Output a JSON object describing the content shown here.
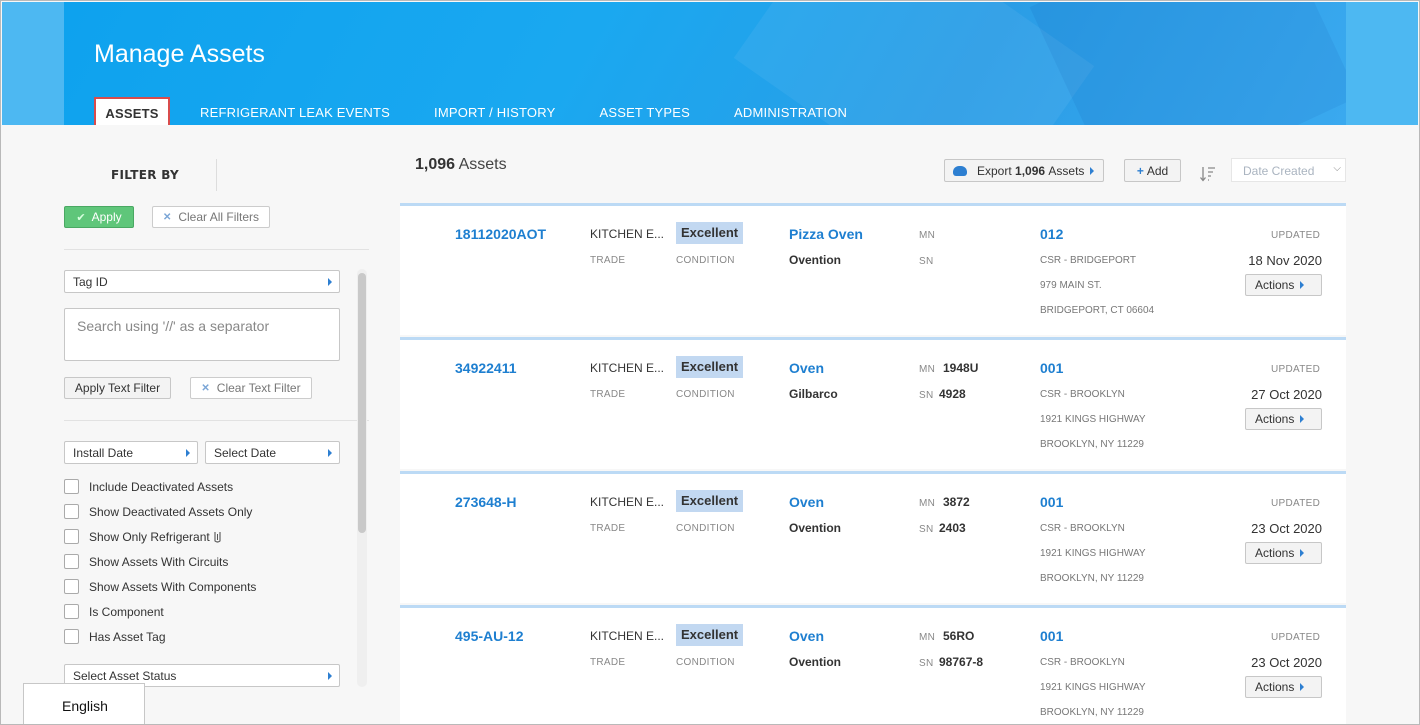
{
  "header": {
    "title": "Manage Assets",
    "tabs": [
      {
        "label": "ASSETS",
        "active": true
      },
      {
        "label": "REFRIGERANT LEAK EVENTS"
      },
      {
        "label": "IMPORT / HISTORY"
      },
      {
        "label": "ASSET TYPES"
      },
      {
        "label": "ADMINISTRATION"
      }
    ]
  },
  "sidebar": {
    "filter_by": "FILTER BY",
    "apply_label": "Apply",
    "clear_all_label": "Clear All Filters",
    "tag_select": "Tag ID",
    "search_placeholder": "Search using '//' as a separator",
    "apply_text_filter": "Apply Text Filter",
    "clear_text_filter": "Clear Text Filter",
    "install_date": "Install Date",
    "select_date": "Select Date",
    "checkboxes": [
      {
        "label": "Include Deactivated Assets",
        "checked": false
      },
      {
        "label": "Show Deactivated Assets Only",
        "checked": false
      },
      {
        "label": "Show Only Refrigerant",
        "checked": false
      },
      {
        "label": "Show Assets With Circuits",
        "checked": false
      },
      {
        "label": "Show Assets With Components",
        "checked": false
      },
      {
        "label": "Is Component",
        "checked": false
      },
      {
        "label": "Has Asset Tag",
        "checked": false
      }
    ],
    "asset_status": "Select Asset Status"
  },
  "language": "English",
  "main": {
    "count_number": "1,096",
    "count_suffix": "Assets",
    "export_prefix": "Export",
    "export_count": "1,096",
    "export_suffix": "Assets",
    "add_label": "Add",
    "sort_placeholder": "Date Created",
    "labels": {
      "trade": "TRADE",
      "condition": "CONDITION",
      "mn": "MN",
      "sn": "SN",
      "updated": "UPDATED",
      "actions": "Actions"
    },
    "assets": [
      {
        "tag": "18112020AOT",
        "trade": "KITCHEN E...",
        "condition": "Excellent",
        "type": "Pizza Oven",
        "make": "Ovention",
        "mn": "",
        "sn": "",
        "location": "012",
        "loc1": "CSR - BRIDGEPORT",
        "loc2": "979 MAIN ST.",
        "loc3": "BRIDGEPORT, CT 06604",
        "updated": "18 Nov 2020"
      },
      {
        "tag": "34922411",
        "trade": "KITCHEN E...",
        "condition": "Excellent",
        "type": "Oven",
        "make": "Gilbarco",
        "mn": "1948U",
        "sn": "4928",
        "location": "001",
        "loc1": "CSR - BROOKLYN",
        "loc2": "1921 KINGS HIGHWAY",
        "loc3": "BROOKLYN, NY 11229",
        "updated": "27 Oct 2020"
      },
      {
        "tag": "273648-H",
        "trade": "KITCHEN E...",
        "condition": "Excellent",
        "type": "Oven",
        "make": "Ovention",
        "mn": "3872",
        "sn": "2403",
        "location": "001",
        "loc1": "CSR - BROOKLYN",
        "loc2": "1921 KINGS HIGHWAY",
        "loc3": "BROOKLYN, NY 11229",
        "updated": "23 Oct 2020"
      },
      {
        "tag": "495-AU-12",
        "trade": "KITCHEN E...",
        "condition": "Excellent",
        "type": "Oven",
        "make": "Ovention",
        "mn": "56RO",
        "sn": "98767-8",
        "location": "001",
        "loc1": "CSR - BROOKLYN",
        "loc2": "1921 KINGS HIGHWAY",
        "loc3": "BROOKLYN, NY 11229",
        "updated": "23 Oct 2020"
      }
    ]
  }
}
